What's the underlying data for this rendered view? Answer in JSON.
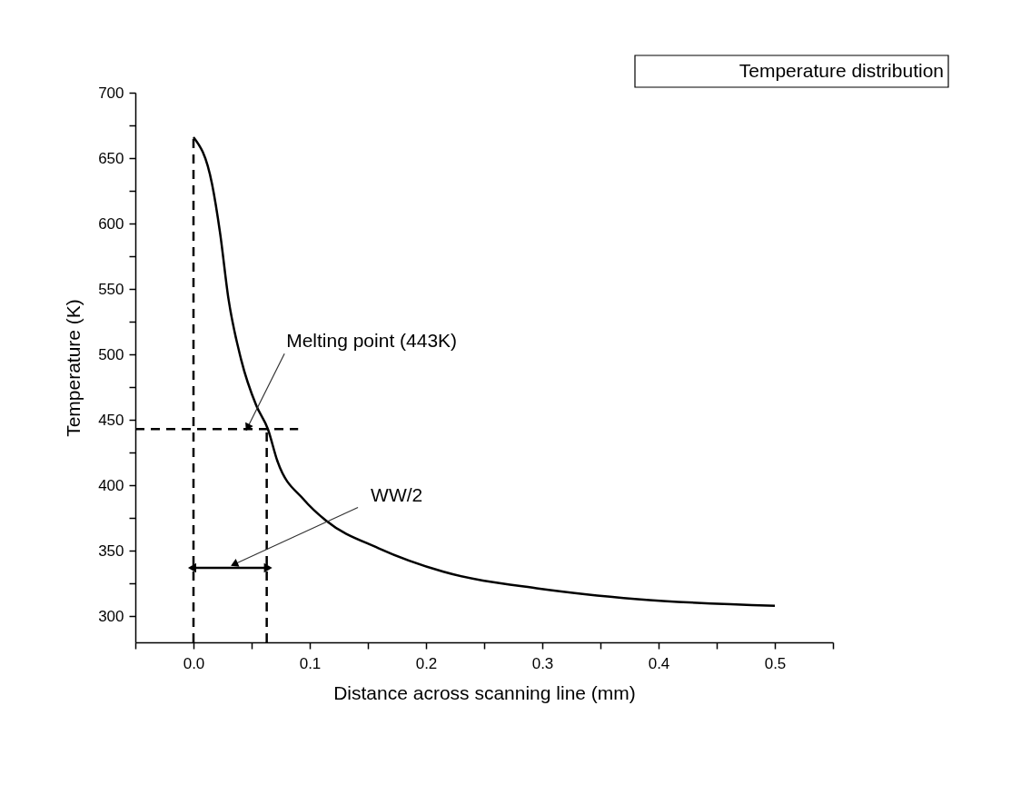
{
  "chart_data": {
    "type": "line",
    "title": "Temperature distribution",
    "xlabel": "Distance across scanning line (mm)",
    "ylabel": "Temperature (K)",
    "xlim": [
      -0.05,
      0.55
    ],
    "ylim": [
      280,
      700
    ],
    "xticks": [
      {
        "value": -0.05,
        "label": null
      },
      {
        "value": 0,
        "label": "0.0"
      },
      {
        "value": 0.05,
        "label": null
      },
      {
        "value": 0.1,
        "label": "0.1"
      },
      {
        "value": 0.15,
        "label": null
      },
      {
        "value": 0.2,
        "label": "0.2"
      },
      {
        "value": 0.25,
        "label": null
      },
      {
        "value": 0.3,
        "label": "0.3"
      },
      {
        "value": 0.35,
        "label": null
      },
      {
        "value": 0.4,
        "label": "0.4"
      },
      {
        "value": 0.45,
        "label": null
      },
      {
        "value": 0.5,
        "label": "0.5"
      },
      {
        "value": 0.55,
        "label": null
      }
    ],
    "yticks": [
      300,
      {
        "value": 325,
        "label": null
      },
      350,
      {
        "value": 375,
        "label": null
      },
      400,
      {
        "value": 425,
        "label": null
      },
      450,
      {
        "value": 475,
        "label": null
      },
      500,
      {
        "value": 525,
        "label": null
      },
      550,
      {
        "value": 575,
        "label": null
      },
      600,
      {
        "value": 625,
        "label": null
      },
      650,
      {
        "value": 675,
        "label": null
      },
      700
    ],
    "grid": false,
    "line_style": "solid",
    "series": [
      {
        "type": "line",
        "color": "#000000",
        "x": [
          0,
          0.016,
          0.023,
          0.03,
          0.041,
          0.054,
          0.064,
          0.072,
          0.095,
          0.114,
          0.159,
          0.215,
          0.298,
          0.382,
          0.5
        ],
        "values": [
          666,
          630,
          592,
          543,
          496,
          461,
          443,
          419,
          389,
          373,
          352,
          334,
          321,
          313,
          308
        ]
      },
      {
        "type": "line",
        "line_style": "dashed",
        "color": "#000000",
        "x": [
          -0.05,
          0.09
        ],
        "values": [
          443,
          443
        ]
      },
      {
        "type": "line",
        "line_style": "dashed",
        "color": "#000000",
        "x": [
          0,
          0
        ],
        "values": [
          280,
          666
        ]
      },
      {
        "type": "line",
        "line_style": "dashed",
        "color": "#000000",
        "x": [
          0.063,
          0.063
        ],
        "values": [
          280,
          443
        ]
      },
      {
        "type": "line",
        "marker": "triangle",
        "color": "#000000",
        "x": [
          0,
          0.063
        ],
        "values": [
          337,
          337
        ]
      }
    ],
    "annotations": [
      {
        "text": "Melting point (443K)",
        "x": 0.047,
        "y": 445
      },
      {
        "text": "WW/2",
        "x": 0.036,
        "y": 340
      }
    ]
  }
}
